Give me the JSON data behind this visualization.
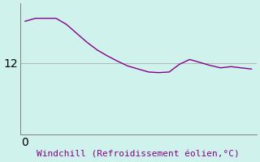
{
  "x": [
    0,
    1,
    2,
    3,
    4,
    5,
    6,
    7,
    8,
    9,
    10,
    11,
    12,
    13,
    14,
    15,
    16,
    17,
    18,
    19,
    20,
    21,
    22
  ],
  "y": [
    19.0,
    19.5,
    19.5,
    19.5,
    18.5,
    17.0,
    15.5,
    14.2,
    13.2,
    12.3,
    11.5,
    11.0,
    10.5,
    10.4,
    10.5,
    11.8,
    12.6,
    12.1,
    11.6,
    11.2,
    11.4,
    11.2,
    11.0
  ],
  "line_color": "#880088",
  "background_color": "#cff2ec",
  "grid_color": "#b0b8b0",
  "ylabel_tick": 12,
  "xlabel": "Windchill (Refroidissement éolien,°C)",
  "xlabel_fontsize": 8,
  "tick_label_color": "#880088",
  "tick_fontsize": 8,
  "xlim": [
    -0.5,
    22.5
  ],
  "ylim": [
    0,
    22
  ],
  "line_width": 1.0,
  "spine_color": "#808080"
}
